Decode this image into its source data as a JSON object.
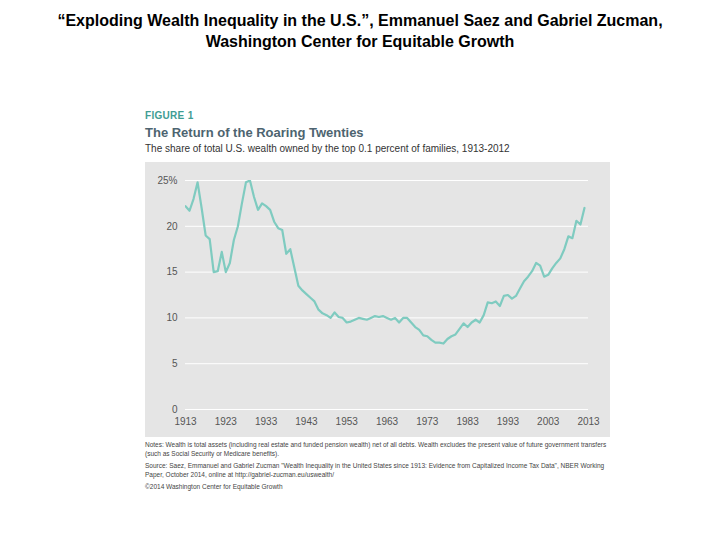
{
  "slide_title": "“Exploding Wealth Inequality in the U.S.”, Emmanuel Saez and Gabriel Zucman, Washington Center for Equitable Growth",
  "chart_data": {
    "type": "line",
    "figure_label": "FIGURE 1",
    "title": "The Return of the Roaring Twenties",
    "subtitle": "The share of total U.S. wealth owned by the top 0.1 percent of families, 1913-2012",
    "notes": "Notes: Wealth is total assets (including real estate and funded pension wealth) net of all debts. Wealth excludes the present value of future government transfers (such as Social Security or Medicare benefits).",
    "source": "Source: Saez, Emmanuel and Gabriel Zucman \"Wealth Inequality in the United States since 1913: Evidence from Capitalized Income Tax Data\", NBER Working Paper, October 2014, online at http://gabriel-zucman.eu/uswealth/",
    "copyright": "©2014 Washington Center for Equitable Growth",
    "x": [
      1913,
      1914,
      1915,
      1916,
      1917,
      1918,
      1919,
      1920,
      1921,
      1922,
      1923,
      1924,
      1925,
      1926,
      1927,
      1928,
      1929,
      1930,
      1931,
      1932,
      1933,
      1934,
      1935,
      1936,
      1937,
      1938,
      1939,
      1940,
      1941,
      1942,
      1943,
      1944,
      1945,
      1946,
      1947,
      1948,
      1949,
      1950,
      1951,
      1952,
      1953,
      1954,
      1955,
      1956,
      1957,
      1958,
      1959,
      1960,
      1961,
      1962,
      1963,
      1964,
      1965,
      1966,
      1967,
      1968,
      1969,
      1970,
      1971,
      1972,
      1973,
      1974,
      1975,
      1976,
      1977,
      1978,
      1979,
      1980,
      1981,
      1982,
      1983,
      1984,
      1985,
      1986,
      1987,
      1988,
      1989,
      1990,
      1991,
      1992,
      1993,
      1994,
      1995,
      1996,
      1997,
      1998,
      1999,
      2000,
      2001,
      2002,
      2003,
      2004,
      2005,
      2006,
      2007,
      2008,
      2009,
      2010,
      2011,
      2012
    ],
    "values": [
      22.2,
      21.7,
      23.0,
      24.8,
      22.0,
      19.0,
      18.6,
      15.0,
      15.1,
      17.2,
      15.0,
      16.0,
      18.5,
      20.0,
      22.5,
      24.8,
      25.0,
      23.2,
      21.8,
      22.5,
      22.2,
      21.8,
      20.5,
      19.8,
      19.6,
      17.0,
      17.5,
      15.5,
      13.5,
      13.0,
      12.6,
      12.2,
      11.8,
      10.9,
      10.5,
      10.3,
      10.0,
      10.6,
      10.1,
      10.0,
      9.5,
      9.6,
      9.8,
      10.0,
      9.9,
      9.8,
      10.0,
      10.2,
      10.1,
      10.2,
      10.0,
      9.8,
      10.0,
      9.5,
      10.0,
      10.0,
      9.5,
      9.0,
      8.7,
      8.1,
      8.0,
      7.6,
      7.3,
      7.3,
      7.2,
      7.7,
      8.0,
      8.2,
      8.8,
      9.4,
      9.0,
      9.5,
      9.8,
      9.5,
      10.3,
      11.7,
      11.6,
      11.8,
      11.3,
      12.4,
      12.5,
      12.1,
      12.4,
      13.2,
      14.0,
      14.5,
      15.1,
      16.0,
      15.7,
      14.5,
      14.7,
      15.4,
      16.0,
      16.5,
      17.5,
      18.9,
      18.7,
      20.6,
      20.2,
      22.0
    ],
    "color": "#7fcbc0",
    "xlim": [
      1913,
      2013
    ],
    "xticks": [
      1913,
      1923,
      1933,
      1943,
      1953,
      1963,
      1973,
      1983,
      1993,
      2003,
      2013
    ],
    "ylim": [
      0,
      25
    ],
    "yticks": [
      0,
      5,
      10,
      15,
      20,
      {
        "value": 25,
        "label": "25%"
      }
    ],
    "grid": true
  }
}
